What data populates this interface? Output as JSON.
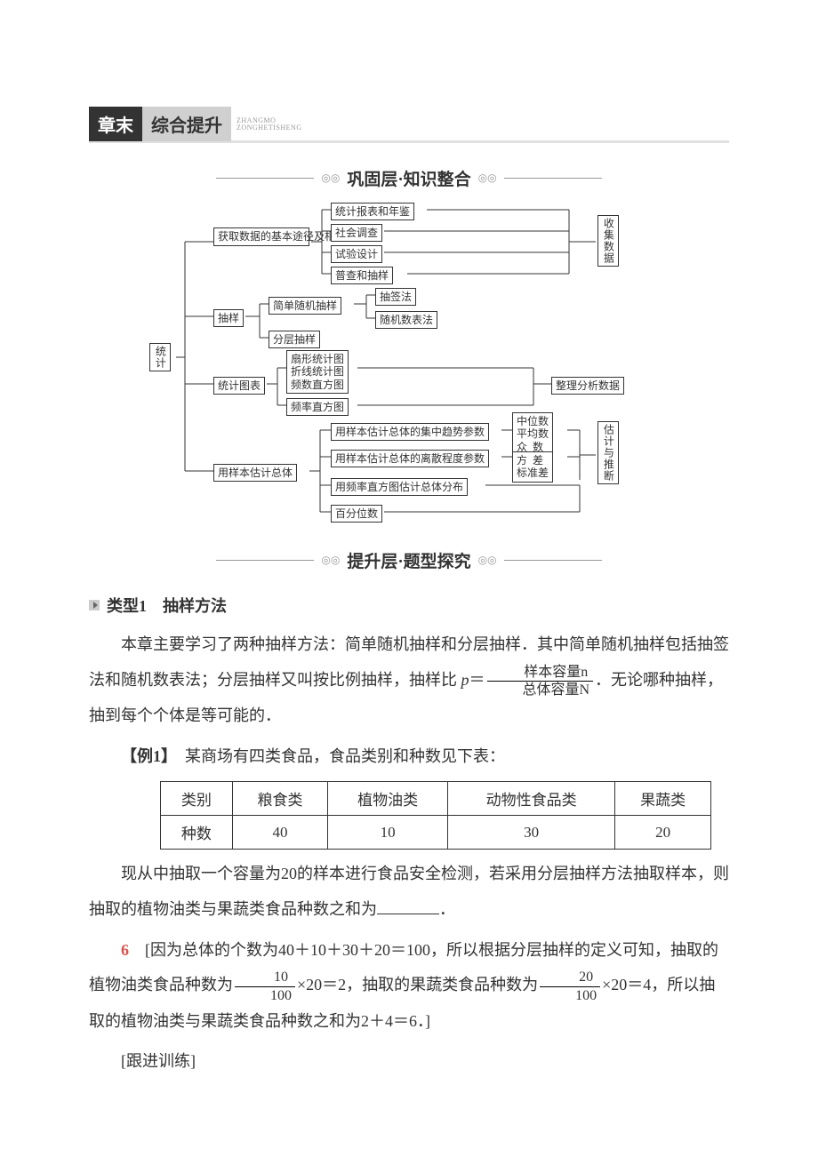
{
  "header": {
    "left": "章末",
    "right": "综合提升",
    "romaji1": "ZHANGMO",
    "romaji2": "ZONGHETISHENG"
  },
  "sections": {
    "consolidate_title": "巩固层·知识整合",
    "explore_title": "提升层·题型探究"
  },
  "diagram": {
    "root": "统计",
    "branch1": {
      "label": "获取数据的基本途径及相关概念",
      "items": [
        "统计报表和年鉴",
        "社会调查",
        "试验设计",
        "普查和抽样"
      ]
    },
    "branch2": {
      "label": "抽样",
      "simple": "简单随机抽样",
      "stratified": "分层抽样",
      "methods": [
        "抽签法",
        "随机数表法"
      ]
    },
    "branch3": {
      "label": "统计图表",
      "group_items": "扇形统计图\n折线统计图\n频数直方图",
      "freq_hist": "频率直方图"
    },
    "branch4": {
      "label": "用样本估计总体",
      "items": [
        "用样本估计总体的集中趋势参数",
        "用样本估计总体的离散程度参数",
        "用频率直方图估计总体分布",
        "百分位数"
      ]
    },
    "right_labels": {
      "collect": "收集数据",
      "analyze": "整理分析数据",
      "central": "中位数\n平均数\n众  数",
      "dispersion": "方  差\n标准差",
      "estimate": "估计与推断"
    }
  },
  "category1": {
    "prefix": "类型1",
    "title": "抽样方法"
  },
  "body": {
    "p1a": "本章主要学习了两种抽样方法：简单随机抽样和分层抽样．其中简单随机抽样包括抽签法和随机数表法；分层抽样又叫按比例抽样，抽样比 ",
    "frac_var": "p",
    "eq_sign": "＝",
    "frac_num": "样本容量n",
    "frac_den": "总体容量N",
    "p1b": "．无论哪种抽样，抽到每个个体是等可能的．"
  },
  "example1": {
    "label": "【例1】",
    "q1": "某商场有四类食品，食品类别和种数见下表：",
    "q2a": "现从中抽取一个容量为20的样本进行食品安全检测，若采用分层抽样方法抽取样本，则抽取的植物油类与果蔬类食品种数之和为",
    "q2b": "．"
  },
  "table": {
    "headers": [
      "类别",
      "粮食类",
      "植物油类",
      "动物性食品类",
      "果蔬类"
    ],
    "row_label": "种数",
    "values": [
      "40",
      "10",
      "30",
      "20"
    ]
  },
  "solution": {
    "answer": "6",
    "t1": "[因为总体的个数为40＋10＋30＋20＝100，所以根据分层抽样的定义可知，抽取的植物油类食品种数为",
    "f1n": "10",
    "f1d": "100",
    "t2": "×20＝2，抽取的果蔬类食品种数为",
    "f2n": "20",
    "f2d": "100",
    "t3": "×20＝4，所以抽取的植物油类与果蔬类食品种数之和为2＋4＝6．]"
  },
  "followup": "[跟进训练]"
}
